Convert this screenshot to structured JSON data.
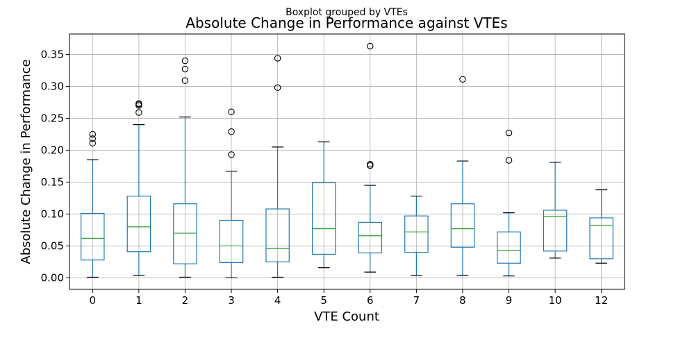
{
  "figure": {
    "suptitle": "Boxplot grouped by VTEs",
    "title": "Absolute Change in Performance against VTEs"
  },
  "chart_data": {
    "type": "boxplot",
    "xlabel": "VTE Count",
    "ylabel": "Absolute Change in Performance",
    "ylim": [
      -0.018,
      0.382
    ],
    "yticks": [
      "0.00",
      "0.05",
      "0.10",
      "0.15",
      "0.20",
      "0.25",
      "0.30",
      "0.35"
    ],
    "ytick_values": [
      0,
      0.05,
      0.1,
      0.15,
      0.2,
      0.25,
      0.3,
      0.35
    ],
    "grid": true,
    "colors": {
      "box": "#1f77b4",
      "median": "#2ca02c",
      "cap": "#000000",
      "grid": "#b0b0b0"
    },
    "categories": [
      "0",
      "1",
      "2",
      "3",
      "4",
      "5",
      "6",
      "7",
      "8",
      "9",
      "10",
      "12"
    ],
    "boxes": [
      {
        "category": "0",
        "whislo": 0.001,
        "q1": 0.028,
        "med": 0.062,
        "q3": 0.101,
        "whishi": 0.185,
        "fliers": [
          0.211,
          0.218,
          0.225
        ]
      },
      {
        "category": "1",
        "whislo": 0.004,
        "q1": 0.041,
        "med": 0.08,
        "q3": 0.128,
        "whishi": 0.24,
        "fliers": [
          0.259,
          0.27,
          0.272,
          0.273
        ]
      },
      {
        "category": "2",
        "whislo": 0.001,
        "q1": 0.022,
        "med": 0.07,
        "q3": 0.116,
        "whishi": 0.252,
        "fliers": [
          0.309,
          0.327,
          0.34
        ]
      },
      {
        "category": "3",
        "whislo": 0.0,
        "q1": 0.024,
        "med": 0.05,
        "q3": 0.09,
        "whishi": 0.167,
        "fliers": [
          0.193,
          0.229,
          0.26
        ]
      },
      {
        "category": "4",
        "whislo": 0.001,
        "q1": 0.025,
        "med": 0.046,
        "q3": 0.108,
        "whishi": 0.205,
        "fliers": [
          0.298,
          0.344
        ]
      },
      {
        "category": "5",
        "whislo": 0.016,
        "q1": 0.037,
        "med": 0.077,
        "q3": 0.149,
        "whishi": 0.213,
        "fliers": []
      },
      {
        "category": "6",
        "whislo": 0.009,
        "q1": 0.039,
        "med": 0.066,
        "q3": 0.087,
        "whishi": 0.145,
        "fliers": [
          0.176,
          0.178,
          0.363
        ]
      },
      {
        "category": "7",
        "whislo": 0.004,
        "q1": 0.04,
        "med": 0.072,
        "q3": 0.097,
        "whishi": 0.128,
        "fliers": []
      },
      {
        "category": "8",
        "whislo": 0.004,
        "q1": 0.048,
        "med": 0.077,
        "q3": 0.116,
        "whishi": 0.183,
        "fliers": [
          0.311
        ]
      },
      {
        "category": "9",
        "whislo": 0.003,
        "q1": 0.023,
        "med": 0.043,
        "q3": 0.072,
        "whishi": 0.102,
        "fliers": [
          0.184,
          0.227
        ]
      },
      {
        "category": "10",
        "whislo": 0.031,
        "q1": 0.042,
        "med": 0.096,
        "q3": 0.106,
        "whishi": 0.181,
        "fliers": []
      },
      {
        "category": "12",
        "whislo": 0.023,
        "q1": 0.03,
        "med": 0.082,
        "q3": 0.094,
        "whishi": 0.138,
        "fliers": []
      }
    ]
  }
}
